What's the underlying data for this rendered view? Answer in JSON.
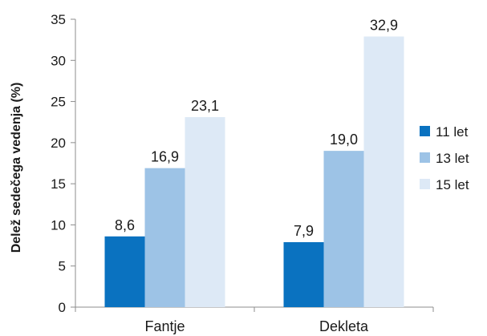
{
  "chart_data": {
    "type": "bar",
    "title": "",
    "xlabel": "",
    "ylabel": "Delež sedečega vedenja (%)",
    "ylim": [
      0,
      35
    ],
    "yticks": [
      0,
      5,
      10,
      15,
      20,
      25,
      30,
      35
    ],
    "grid": false,
    "legend_position": "right",
    "categories": [
      "Fantje",
      "Dekleta"
    ],
    "series": [
      {
        "name": "11 let",
        "values": [
          8.6,
          7.9
        ],
        "labels": [
          "8,6",
          "7,9"
        ],
        "color": "#0a72c0"
      },
      {
        "name": "13 let",
        "values": [
          16.9,
          19.0
        ],
        "labels": [
          "16,9",
          "19,0"
        ],
        "color": "#9dc3e6"
      },
      {
        "name": "15 let",
        "values": [
          23.1,
          32.9
        ],
        "labels": [
          "23,1",
          "32,9"
        ],
        "color": "#dde9f6"
      }
    ]
  }
}
